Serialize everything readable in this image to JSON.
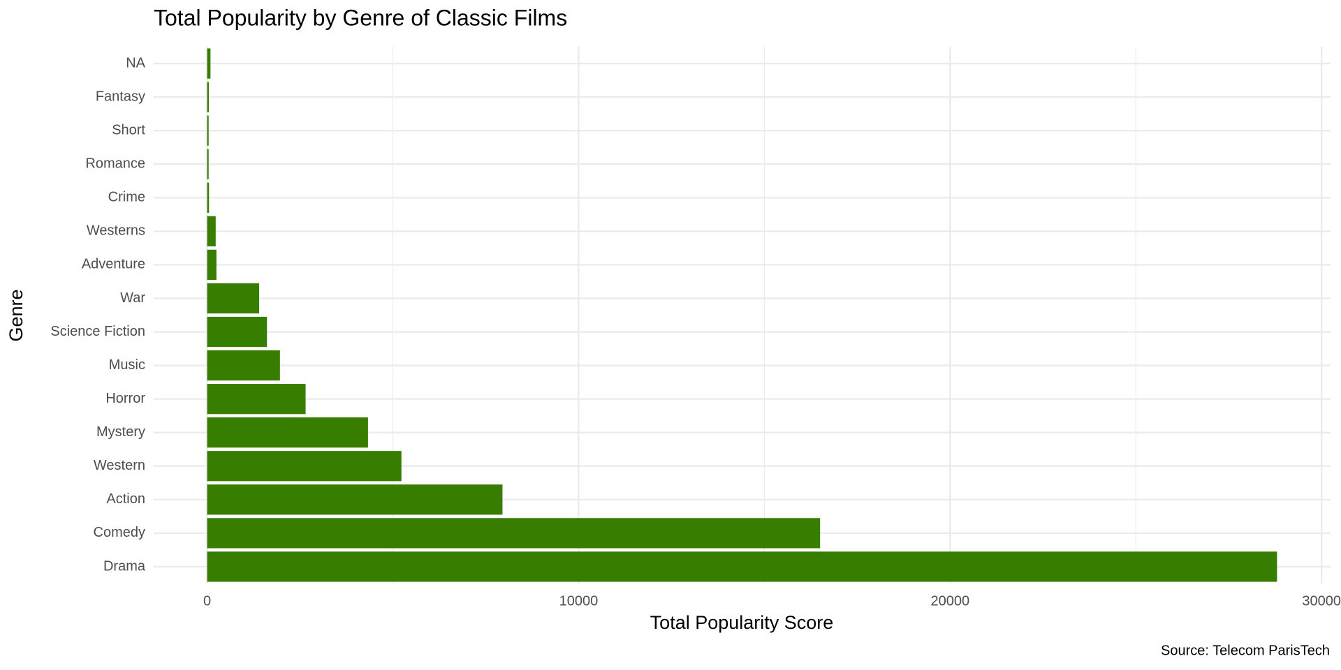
{
  "chart_data": {
    "type": "bar",
    "orientation": "horizontal",
    "title": "Total Popularity by Genre of Classic Films",
    "x_label": "Total Popularity Score",
    "y_label": "Genre",
    "caption": "Source: Telecom ParisTech",
    "categories": [
      "Drama",
      "Comedy",
      "Action",
      "Western",
      "Mystery",
      "Horror",
      "Music",
      "Science Fiction",
      "War",
      "Adventure",
      "Westerns",
      "Crime",
      "Romance",
      "Short",
      "Fantasy",
      "NA"
    ],
    "values": [
      28800,
      16500,
      7950,
      5230,
      4330,
      2650,
      1960,
      1610,
      1400,
      250,
      230,
      50,
      40,
      40,
      45,
      90
    ],
    "color": "#377e00",
    "xlim": [
      -1440,
      30240
    ],
    "xticks": [
      0,
      10000,
      20000,
      30000
    ],
    "grid": true
  }
}
